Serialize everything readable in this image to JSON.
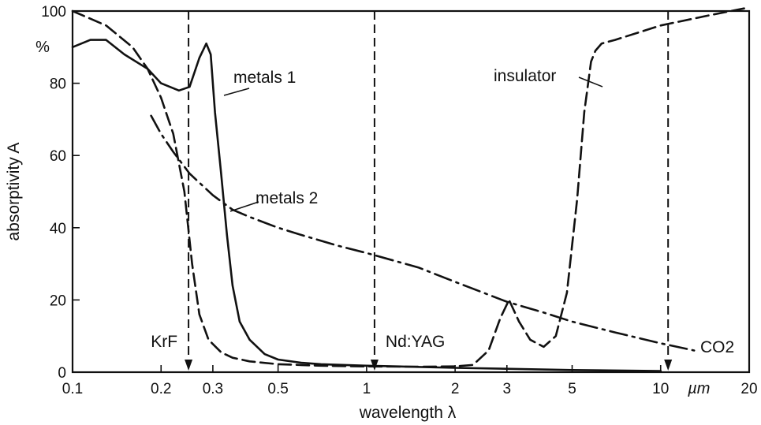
{
  "chart_data": {
    "type": "line",
    "title": "",
    "xlabel": "wavelength λ",
    "ylabel": "absorptivity A",
    "x_scale": "log",
    "xlim": [
      0.1,
      20
    ],
    "ylim": [
      0,
      100
    ],
    "x_ticks": [
      {
        "value": 0.1,
        "label": "0.1"
      },
      {
        "value": 0.2,
        "label": "0.2"
      },
      {
        "value": 0.3,
        "label": "0.3"
      },
      {
        "value": 0.5,
        "label": "0.5"
      },
      {
        "value": 1,
        "label": "1"
      },
      {
        "value": 2,
        "label": "2"
      },
      {
        "value": 3,
        "label": "3"
      },
      {
        "value": 5,
        "label": "5"
      },
      {
        "value": 10,
        "label": "10"
      },
      {
        "value": 20,
        "label": "20"
      }
    ],
    "x_unit": "µm",
    "y_ticks": [
      {
        "value": 0,
        "label": "0"
      },
      {
        "value": 20,
        "label": "20"
      },
      {
        "value": 40,
        "label": "40"
      },
      {
        "value": 60,
        "label": "60"
      },
      {
        "value": 80,
        "label": "80"
      },
      {
        "value": 100,
        "label": "100"
      }
    ],
    "y_unit": "%",
    "grid": false,
    "series": [
      {
        "name": "metals 1",
        "style": "solid",
        "color": "#111111",
        "x": [
          0.1,
          0.115,
          0.13,
          0.15,
          0.18,
          0.2,
          0.23,
          0.25,
          0.27,
          0.285,
          0.295,
          0.305,
          0.32,
          0.335,
          0.35,
          0.37,
          0.4,
          0.45,
          0.5,
          0.6,
          0.7,
          1,
          2,
          5,
          10
        ],
        "y": [
          90,
          92,
          92,
          88,
          84,
          80,
          78,
          79,
          87,
          91,
          88,
          72,
          55,
          38,
          24,
          14,
          9,
          5,
          3.5,
          2.6,
          2.2,
          1.8,
          1.2,
          0.6,
          0.3
        ]
      },
      {
        "name": "metals 2",
        "style": "dash-dot",
        "color": "#111111",
        "x": [
          0.185,
          0.2,
          0.22,
          0.25,
          0.3,
          0.35,
          0.4,
          0.5,
          0.6,
          0.8,
          1,
          1.5,
          2,
          3,
          4,
          5,
          7,
          10,
          13
        ],
        "y": [
          71,
          66,
          61,
          55,
          49,
          45,
          43,
          40,
          38,
          35,
          33,
          29,
          25,
          19.5,
          16.5,
          14,
          11,
          8,
          6
        ]
      },
      {
        "name": "insulator",
        "style": "dashed",
        "color": "#111111",
        "x": [
          0.1,
          0.13,
          0.16,
          0.18,
          0.2,
          0.22,
          0.24,
          0.255,
          0.27,
          0.29,
          0.32,
          0.35,
          0.4,
          0.5,
          0.7,
          1,
          1.5,
          2,
          2.3,
          2.6,
          2.85,
          3.05,
          3.3,
          3.6,
          4.0,
          4.4,
          4.8,
          5.2,
          5.5,
          5.8,
          6.0,
          6.3,
          7,
          10,
          15,
          20
        ],
        "y": [
          100,
          96,
          90,
          84,
          76,
          66,
          50,
          30,
          16,
          9,
          5.5,
          4,
          3,
          2.2,
          1.8,
          1.6,
          1.5,
          1.6,
          2,
          6,
          15,
          20,
          14,
          9,
          7,
          10,
          22,
          48,
          72,
          86,
          89,
          91,
          92,
          96,
          99,
          101
        ]
      }
    ],
    "reference_lines": [
      {
        "x": 0.248,
        "label": "KrF",
        "style": "dashed"
      },
      {
        "x": 1.064,
        "label": "Nd:YAG",
        "style": "dashed"
      },
      {
        "x": 10.6,
        "label": "CO2",
        "style": "dashed"
      }
    ]
  }
}
